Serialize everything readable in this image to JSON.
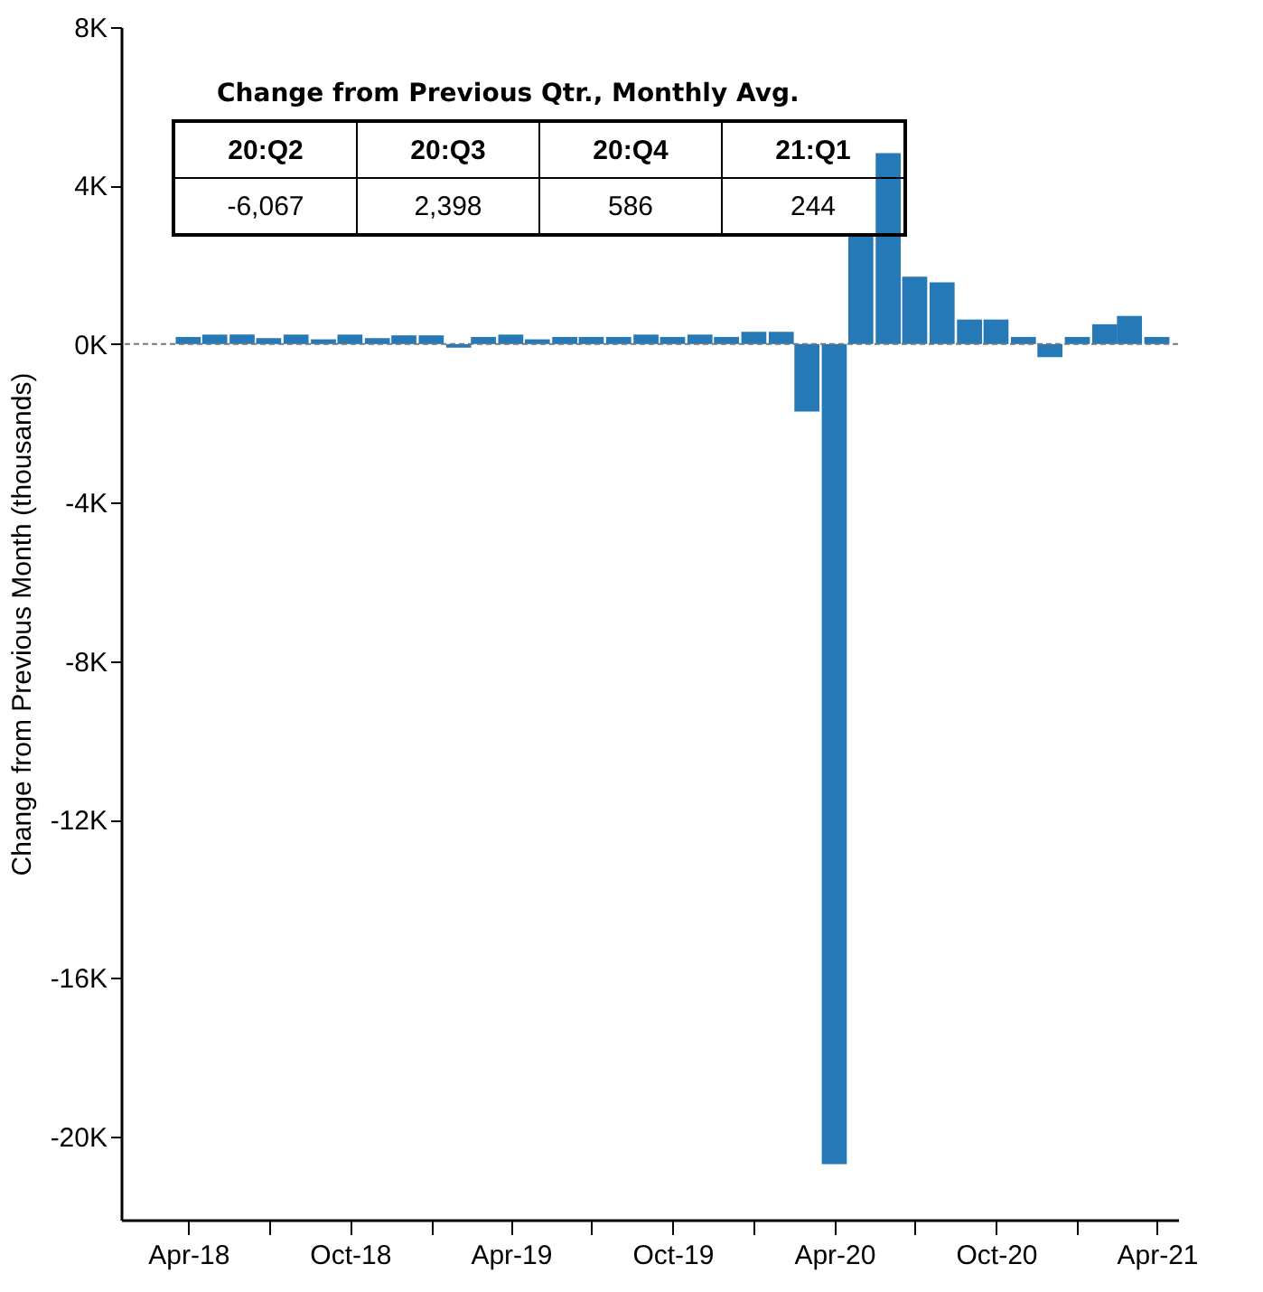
{
  "chart_data": {
    "type": "bar",
    "ylabel": "Change from Previous Month (thousands)",
    "x": [
      "2018-04",
      "2018-05",
      "2018-06",
      "2018-07",
      "2018-08",
      "2018-09",
      "2018-10",
      "2018-11",
      "2018-12",
      "2019-01",
      "2019-02",
      "2019-03",
      "2019-04",
      "2019-05",
      "2019-06",
      "2019-07",
      "2019-08",
      "2019-09",
      "2019-10",
      "2019-11",
      "2019-12",
      "2020-01",
      "2020-02",
      "2020-03",
      "2020-04",
      "2020-05",
      "2020-06",
      "2020-07",
      "2020-08",
      "2020-09",
      "2020-10",
      "2020-11",
      "2020-12",
      "2021-01",
      "2021-02",
      "2021-03",
      "2021-04"
    ],
    "values": [
      180,
      240,
      240,
      150,
      240,
      120,
      240,
      150,
      220,
      220,
      -90,
      180,
      240,
      120,
      180,
      180,
      180,
      240,
      180,
      240,
      180,
      310,
      310,
      -1700,
      -20700,
      2780,
      4820,
      1700,
      1560,
      620,
      620,
      180,
      -330,
      180,
      500,
      710,
      180
    ],
    "color": "#2479b6",
    "xlim": [
      "2018-01-15",
      "2021-04-25"
    ],
    "xticks": [
      {
        "value": "2018-04",
        "label": "Apr-18"
      },
      {
        "value": "2018-07",
        "label": null
      },
      {
        "value": "2018-10",
        "label": "Oct-18"
      },
      {
        "value": "2019-01",
        "label": null
      },
      {
        "value": "2019-04",
        "label": "Apr-19"
      },
      {
        "value": "2019-07",
        "label": null
      },
      {
        "value": "2019-10",
        "label": "Oct-19"
      },
      {
        "value": "2020-01",
        "label": null
      },
      {
        "value": "2020-04",
        "label": "Apr-20"
      },
      {
        "value": "2020-07",
        "label": null
      },
      {
        "value": "2020-10",
        "label": "Oct-20"
      },
      {
        "value": "2021-01",
        "label": null
      },
      {
        "value": "2021-04",
        "label": "Apr-21"
      }
    ],
    "ylim": [
      -22100,
      8000
    ],
    "yticks": [
      {
        "value": -20000,
        "label": "-20K"
      },
      {
        "value": -16000,
        "label": "-16K"
      },
      {
        "value": -12000,
        "label": "-12K"
      },
      {
        "value": -8000,
        "label": "-8K"
      },
      {
        "value": -4000,
        "label": "-4K"
      },
      {
        "value": 0,
        "label": "0K"
      },
      {
        "value": 4000,
        "label": "4K"
      },
      {
        "value": 8000,
        "label": "8K"
      }
    ],
    "ref_lines": [
      {
        "axis": "y",
        "value": 0,
        "color": "#777777",
        "line_style": "dashed"
      }
    ],
    "annotations": [
      "Change from Previous Qtr., Monthly Avg.",
      "20:Q2",
      "20:Q3",
      "20:Q4",
      "21:Q1",
      "-6,067",
      "2,398",
      "586",
      "244"
    ],
    "grid": false
  }
}
